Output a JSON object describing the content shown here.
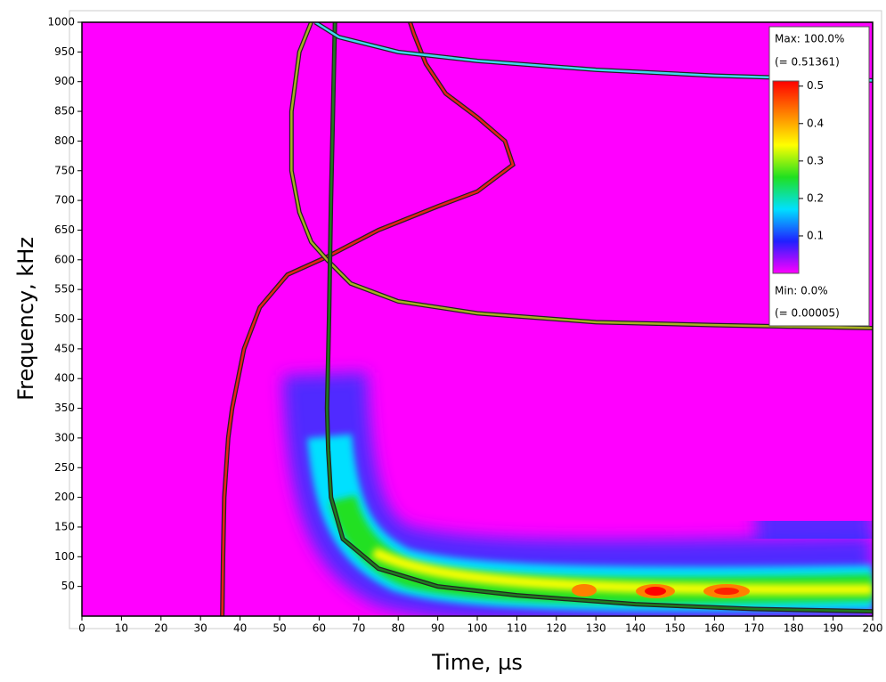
{
  "chart_data": {
    "type": "line",
    "x_label": "Time, µs",
    "y_label": "Frequency, kHz",
    "xlim": [
      0,
      200
    ],
    "ylim": [
      0,
      1000
    ],
    "xticks": [
      0,
      10,
      20,
      30,
      40,
      50,
      60,
      70,
      80,
      90,
      100,
      110,
      120,
      130,
      140,
      150,
      160,
      170,
      180,
      190,
      200
    ],
    "yticks": [
      50,
      100,
      150,
      200,
      250,
      300,
      350,
      400,
      450,
      500,
      550,
      600,
      650,
      700,
      750,
      800,
      850,
      900,
      950,
      1000
    ],
    "background_color": "#ff00ff",
    "series": [
      {
        "color": "#e8201a",
        "x": [
          35.5,
          35.7,
          36,
          37,
          38,
          41,
          45,
          52,
          62,
          75,
          90,
          100,
          105,
          109,
          107,
          100,
          92,
          87,
          84,
          83
        ],
        "values": [
          0,
          100,
          200,
          300,
          350,
          450,
          520,
          575,
          605,
          650,
          690,
          715,
          740,
          760,
          800,
          840,
          880,
          930,
          980,
          1000
        ]
      },
      {
        "color": "#a8b020",
        "x": [
          58,
          55,
          53,
          53,
          55,
          58,
          62,
          68,
          80,
          100,
          130,
          160,
          200
        ],
        "values": [
          1000,
          950,
          850,
          750,
          680,
          630,
          600,
          560,
          530,
          510,
          495,
          490,
          485
        ]
      },
      {
        "color": "#1f7a1f",
        "x": [
          64,
          63.5,
          63,
          62.5,
          62,
          62.3,
          63,
          66,
          75,
          90,
          110,
          140,
          170,
          200
        ],
        "values": [
          1000,
          850,
          700,
          500,
          350,
          280,
          200,
          130,
          80,
          50,
          35,
          20,
          12,
          8
        ]
      },
      {
        "color": "#40d8f0",
        "x": [
          59,
          65,
          80,
          100,
          130,
          160,
          200
        ],
        "values": [
          1000,
          975,
          950,
          935,
          920,
          910,
          902
        ]
      }
    ],
    "colorbar": {
      "max_label": "Max: 100.0%",
      "max_value_label": "(= 0.51361)",
      "min_label": "Min: 0.0%",
      "min_value_label": "(= 0.00005)",
      "clim": [
        5e-05,
        0.51361
      ],
      "ticks": [
        0.1,
        0.2,
        0.3,
        0.4,
        0.5
      ],
      "colors": [
        "#ff00ff",
        "#2020ff",
        "#00e0ff",
        "#20e020",
        "#ffff00",
        "#ff8000",
        "#ff0000"
      ]
    }
  }
}
